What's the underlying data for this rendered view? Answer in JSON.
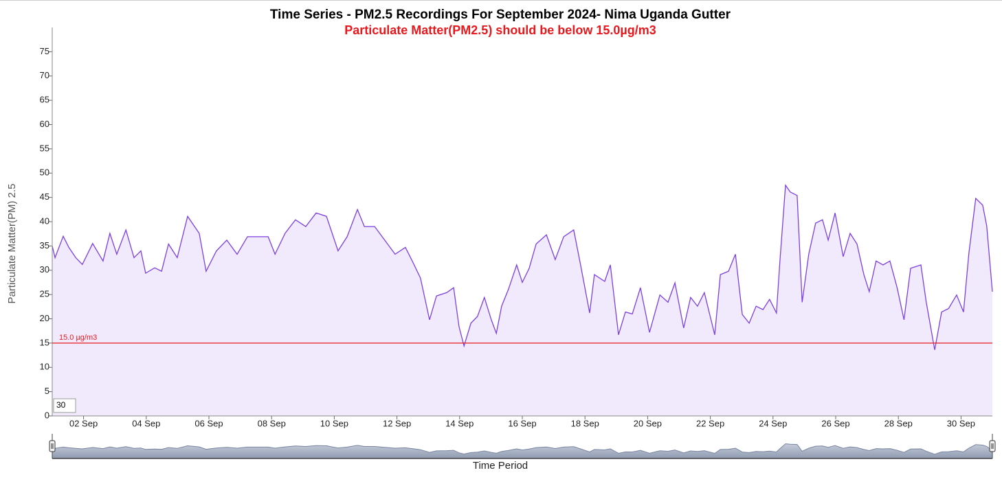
{
  "chart_data": {
    "type": "area",
    "title": "Time Series - PM2.5 Recordings For September 2024- Nima Uganda Gutter",
    "subtitle": "Particulate Matter(PM2.5) should be below 15.0µg/m3",
    "ylabel": "Particulate Matter(PM) 2.5",
    "xlabel": "Time Period",
    "input_value": "30",
    "color": "#7b3fe0",
    "fill": "#f1eafc",
    "threshold": {
      "value": 15,
      "label": "15.0 µg/m3",
      "color": "#e8181c"
    },
    "xlim": [
      1,
      31
    ],
    "xticks": [
      {
        "value": 2,
        "label": "02 Sep"
      },
      {
        "value": 4,
        "label": "04 Sep"
      },
      {
        "value": 6,
        "label": "06 Sep"
      },
      {
        "value": 8,
        "label": "08 Sep"
      },
      {
        "value": 10,
        "label": "10 Sep"
      },
      {
        "value": 12,
        "label": "12 Sep"
      },
      {
        "value": 14,
        "label": "14 Sep"
      },
      {
        "value": 16,
        "label": "16 Sep"
      },
      {
        "value": 18,
        "label": "18 Sep"
      },
      {
        "value": 20,
        "label": "20 Sep"
      },
      {
        "value": 22,
        "label": "22 Sep"
      },
      {
        "value": 24,
        "label": "24 Sep"
      },
      {
        "value": 26,
        "label": "26 Sep"
      },
      {
        "value": 28,
        "label": "28 Sep"
      },
      {
        "value": 30,
        "label": "30 Sep"
      }
    ],
    "ylim": [
      0,
      80
    ],
    "yticks": [
      0,
      5,
      10,
      15,
      20,
      25,
      30,
      35,
      40,
      45,
      50,
      55,
      60,
      65,
      70,
      75
    ],
    "x": [
      1.0,
      1.09,
      1.35,
      1.53,
      1.75,
      1.96,
      2.29,
      2.62,
      2.84,
      3.06,
      3.35,
      3.61,
      3.83,
      3.98,
      4.27,
      4.49,
      4.71,
      4.99,
      5.32,
      5.69,
      5.91,
      6.24,
      6.57,
      6.9,
      7.23,
      7.56,
      7.89,
      8.11,
      8.43,
      8.76,
      9.09,
      9.42,
      9.75,
      10.12,
      10.41,
      10.74,
      10.96,
      11.29,
      11.61,
      11.94,
      12.27,
      12.49,
      12.75,
      13.04,
      13.26,
      13.59,
      13.81,
      13.98,
      14.14,
      14.36,
      14.57,
      14.79,
      15.01,
      15.17,
      15.34,
      15.56,
      15.82,
      16.0,
      16.22,
      16.44,
      16.77,
      17.05,
      17.32,
      17.64,
      17.86,
      18.15,
      18.3,
      18.63,
      18.81,
      19.07,
      19.29,
      19.51,
      19.77,
      20.06,
      20.39,
      20.65,
      20.87,
      21.15,
      21.37,
      21.59,
      21.81,
      22.14,
      22.32,
      22.58,
      22.8,
      23.02,
      23.24,
      23.46,
      23.68,
      23.89,
      24.11,
      24.22,
      24.4,
      24.55,
      24.77,
      24.93,
      25.14,
      25.36,
      25.58,
      25.76,
      25.98,
      26.24,
      26.46,
      26.68,
      26.9,
      27.07,
      27.29,
      27.51,
      27.73,
      27.96,
      28.18,
      28.39,
      28.72,
      28.89,
      29.16,
      29.38,
      29.6,
      29.86,
      30.08,
      30.25,
      30.47,
      30.69,
      30.82,
      31.0
    ],
    "values": [
      35.0,
      32.6,
      37.0,
      34.7,
      32.6,
      31.2,
      35.5,
      31.9,
      37.6,
      33.3,
      38.3,
      32.6,
      34.0,
      29.4,
      30.5,
      29.8,
      35.4,
      32.6,
      41.1,
      37.6,
      29.8,
      34.0,
      36.2,
      33.3,
      36.9,
      36.9,
      36.9,
      33.3,
      37.6,
      40.4,
      39.0,
      41.8,
      41.1,
      34.0,
      36.9,
      42.5,
      39.0,
      39.0,
      36.2,
      33.3,
      34.7,
      31.9,
      28.4,
      19.8,
      24.7,
      25.4,
      26.4,
      18.4,
      14.4,
      19.1,
      20.5,
      24.4,
      19.8,
      17.0,
      22.6,
      26.1,
      31.1,
      27.5,
      30.4,
      35.4,
      37.3,
      32.2,
      36.9,
      38.3,
      31.1,
      21.2,
      29.1,
      27.7,
      31.1,
      16.7,
      21.4,
      21.0,
      26.4,
      17.2,
      24.9,
      23.4,
      27.4,
      18.1,
      24.4,
      22.6,
      25.4,
      16.7,
      29.1,
      29.8,
      33.3,
      20.9,
      19.1,
      22.6,
      21.9,
      24.0,
      21.2,
      31.8,
      47.5,
      46.1,
      45.4,
      23.4,
      33.3,
      39.7,
      40.4,
      36.2,
      41.8,
      32.8,
      37.6,
      35.4,
      29.1,
      25.6,
      31.9,
      31.1,
      31.9,
      26.4,
      19.8,
      30.4,
      31.1,
      23.4,
      13.6,
      21.4,
      22.1,
      24.9,
      21.4,
      33.5,
      44.8,
      43.4,
      39.1,
      25.6
    ]
  }
}
